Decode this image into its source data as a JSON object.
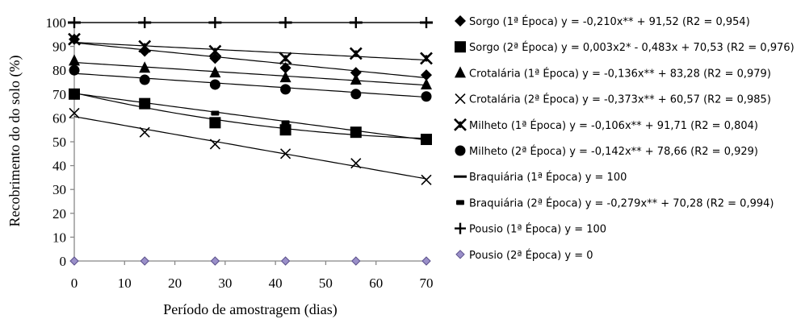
{
  "chart_data": {
    "type": "scatter",
    "title": "",
    "xlabel": "Período de amostragem (dias)",
    "ylabel": "Recobrimento do do solo (%)",
    "xlim": [
      0,
      70
    ],
    "ylim": [
      0,
      100
    ],
    "xticks": [
      "0",
      "10",
      "20",
      "30",
      "40",
      "50",
      "60",
      "70"
    ],
    "yticks": [
      "0",
      "10",
      "20",
      "30",
      "40",
      "50",
      "60",
      "70",
      "80",
      "90",
      "100"
    ],
    "grid": false,
    "legend_position": "right",
    "series": [
      {
        "name": "Sorgo (1ª Época) y = -0,210x** + 91,52 (R2 = 0,954)",
        "marker": "diamond-filled",
        "x": [
          0,
          14,
          28,
          42,
          56,
          70
        ],
        "y": [
          93,
          88,
          85,
          81,
          79,
          78
        ],
        "trend": {
          "type": "linear",
          "a": -0.21,
          "b": 91.52
        }
      },
      {
        "name": "Sorgo (2ª Época) y = 0,003x2* - 0,483x + 70,53 (R2 = 0,976)",
        "marker": "square",
        "x": [
          0,
          14,
          28,
          42,
          56,
          70
        ],
        "y": [
          70,
          66,
          58,
          55,
          54,
          51
        ],
        "trend": {
          "type": "quadratic",
          "c2": 0.003,
          "a": -0.483,
          "b": 70.53
        }
      },
      {
        "name": "Crotalária (1ª Época) y = -0,136x** + 83,28 (R2 = 0,979)",
        "marker": "triangle",
        "x": [
          0,
          14,
          28,
          42,
          56,
          70
        ],
        "y": [
          84,
          81,
          79,
          77,
          76,
          74
        ],
        "trend": {
          "type": "linear",
          "a": -0.136,
          "b": 83.28
        }
      },
      {
        "name": "Crotalária (2ª Época) y = -0,373x** + 60,57 (R2 = 0,985)",
        "marker": "x",
        "x": [
          0,
          14,
          28,
          42,
          56,
          70
        ],
        "y": [
          62,
          54,
          49,
          45,
          41,
          34
        ],
        "trend": {
          "type": "linear",
          "a": -0.373,
          "b": 60.57
        }
      },
      {
        "name": "Milheto (1ª Época) y = -0,106x** + 91,71 (R2 = 0,804)",
        "marker": "star-x",
        "x": [
          0,
          14,
          28,
          42,
          56,
          70
        ],
        "y": [
          93,
          90,
          88,
          85,
          87,
          85
        ],
        "trend": {
          "type": "linear",
          "a": -0.106,
          "b": 91.71
        }
      },
      {
        "name": "Milheto (2ª Época) y = -0,142x** + 78,66 (R2 = 0,929)",
        "marker": "circle",
        "x": [
          0,
          14,
          28,
          42,
          56,
          70
        ],
        "y": [
          80,
          76,
          74,
          72,
          70,
          69
        ],
        "trend": {
          "type": "linear",
          "a": -0.142,
          "b": 78.66
        }
      },
      {
        "name": "Braquiária (1ª Época) y = 100",
        "marker": "dash",
        "x": [
          0,
          14,
          28,
          42,
          56,
          70
        ],
        "y": [
          100,
          100,
          100,
          100,
          100,
          100
        ],
        "trend": {
          "type": "linear",
          "a": 0,
          "b": 100
        }
      },
      {
        "name": "Braquiária (2ª Época) y = -0,279x** + 70,28 (R2 = 0,994)",
        "marker": "small-rect",
        "x": [
          0,
          14,
          28,
          42,
          56,
          70
        ],
        "y": [
          70,
          66,
          62,
          58,
          54,
          51
        ],
        "trend": {
          "type": "linear",
          "a": -0.279,
          "b": 70.28
        }
      },
      {
        "name": "Pousio (1ª Época) y = 100",
        "marker": "plus",
        "x": [
          0,
          14,
          28,
          42,
          56,
          70
        ],
        "y": [
          100,
          100,
          100,
          100,
          100,
          100
        ],
        "trend": {
          "type": "linear",
          "a": 0,
          "b": 100
        }
      },
      {
        "name": "Pousio (2ª Época) y = 0",
        "marker": "diamond-purple",
        "color": "#9a8fc9",
        "x": [
          0,
          14,
          28,
          42,
          56,
          70
        ],
        "y": [
          0,
          0,
          0,
          0,
          0,
          0
        ],
        "trend": null
      }
    ]
  }
}
